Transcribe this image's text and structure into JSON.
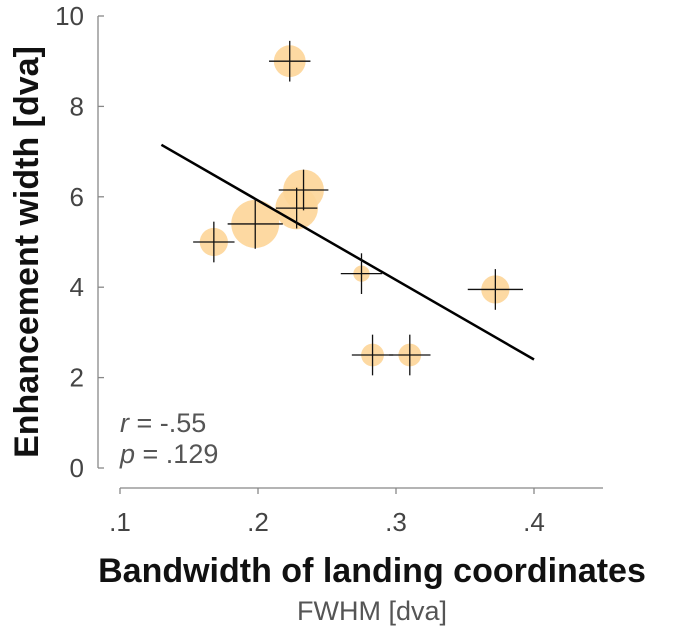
{
  "chart_data": {
    "type": "scatter",
    "xlabel": "Bandwidth of landing coordinates",
    "xlabel_sub": "FWHM [dva]",
    "ylabel": "Enhancement width [dva]",
    "xlim": [
      0.1,
      0.45
    ],
    "ylim": [
      0,
      10
    ],
    "xticks": [
      {
        "value": 0.1,
        "label": ".1"
      },
      {
        "value": 0.2,
        "label": ".2"
      },
      {
        "value": 0.3,
        "label": ".3"
      },
      {
        "value": 0.4,
        "label": ".4"
      }
    ],
    "yticks": [
      {
        "value": 0,
        "label": "0"
      },
      {
        "value": 2,
        "label": "2"
      },
      {
        "value": 4,
        "label": "4"
      },
      {
        "value": 6,
        "label": "6"
      },
      {
        "value": 8,
        "label": "8"
      },
      {
        "value": 10,
        "label": "10"
      }
    ],
    "marker_color": "#fdd598",
    "line_color": "#000000",
    "grid": false,
    "points": [
      {
        "x": 0.223,
        "y": 9.0,
        "size": 0.55,
        "xerr": 0.015,
        "yerr": 0.45
      },
      {
        "x": 0.168,
        "y": 5.0,
        "size": 0.45,
        "xerr": 0.015,
        "yerr": 0.45
      },
      {
        "x": 0.198,
        "y": 5.4,
        "size": 1.0,
        "xerr": 0.02,
        "yerr": 0.55
      },
      {
        "x": 0.228,
        "y": 5.75,
        "size": 0.85,
        "xerr": 0.015,
        "yerr": 0.45
      },
      {
        "x": 0.233,
        "y": 6.15,
        "size": 0.8,
        "xerr": 0.018,
        "yerr": 0.45
      },
      {
        "x": 0.275,
        "y": 4.3,
        "size": 0.12,
        "xerr": 0.015,
        "yerr": 0.45
      },
      {
        "x": 0.283,
        "y": 2.5,
        "size": 0.3,
        "xerr": 0.015,
        "yerr": 0.45
      },
      {
        "x": 0.31,
        "y": 2.5,
        "size": 0.3,
        "xerr": 0.015,
        "yerr": 0.45
      },
      {
        "x": 0.372,
        "y": 3.95,
        "size": 0.45,
        "xerr": 0.02,
        "yerr": 0.45
      }
    ],
    "fit_line": {
      "x1": 0.13,
      "y1": 7.15,
      "x2": 0.4,
      "y2": 2.4
    },
    "annotation": {
      "r_symbol": "r",
      "r_value": " = -.55",
      "p_symbol": "p",
      "p_value": " = .129"
    }
  }
}
